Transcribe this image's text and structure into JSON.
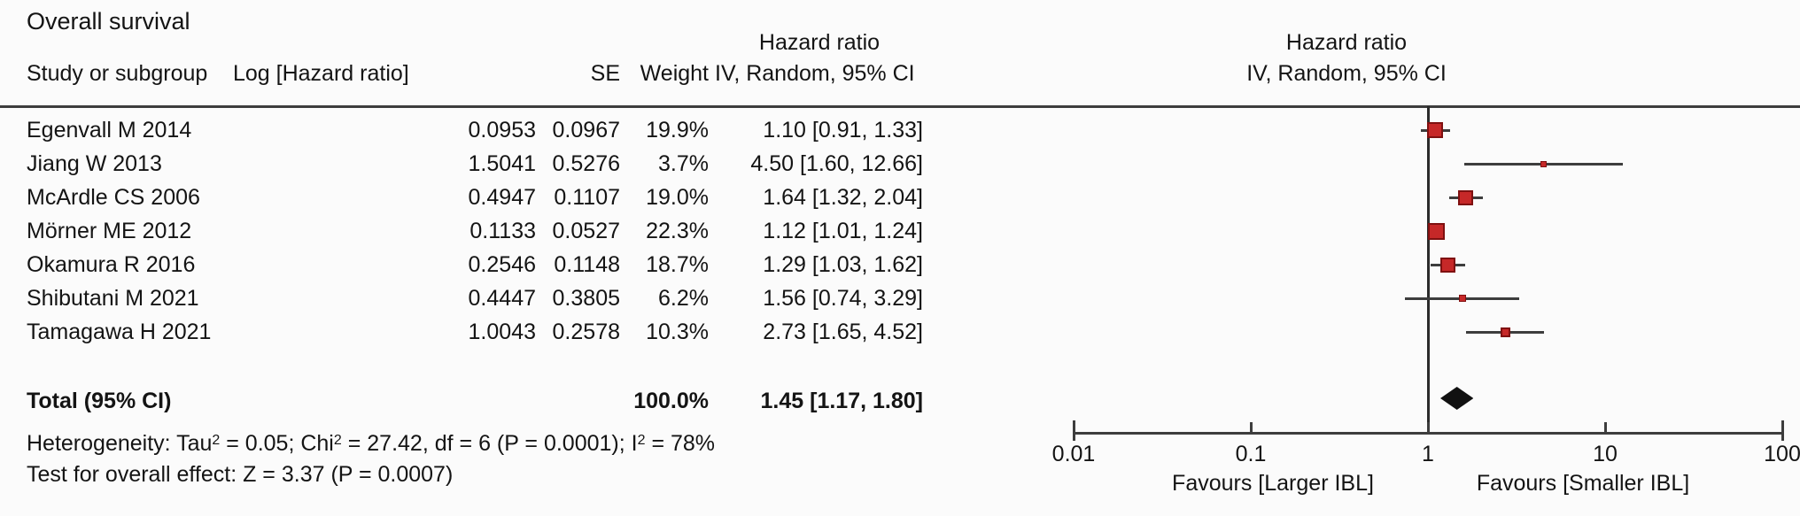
{
  "figure": {
    "title": "Overall survival",
    "table_header": {
      "study": "Study or subgroup",
      "log_hr": "Log [Hazard ratio]",
      "se": "SE",
      "weight": "Weight",
      "hr_line1": "Hazard ratio",
      "hr_line2": "IV, Random, 95% CI",
      "plot_line1": "Hazard ratio",
      "plot_line2": "IV, Random, 95% CI"
    },
    "rows": [
      {
        "study": "Egenvall M 2014",
        "log_hr": "0.0953",
        "se": "0.0967",
        "weight": "19.9%",
        "hr_ci": "1.10 [0.91, 1.33]"
      },
      {
        "study": "Jiang W 2013",
        "log_hr": "1.5041",
        "se": "0.5276",
        "weight": "3.7%",
        "hr_ci": "4.50 [1.60, 12.66]"
      },
      {
        "study": "McArdle CS 2006",
        "log_hr": "0.4947",
        "se": "0.1107",
        "weight": "19.0%",
        "hr_ci": "1.64 [1.32, 2.04]"
      },
      {
        "study": "Mörner ME 2012",
        "log_hr": "0.1133",
        "se": "0.0527",
        "weight": "22.3%",
        "hr_ci": "1.12 [1.01, 1.24]"
      },
      {
        "study": "Okamura R 2016",
        "log_hr": "0.2546",
        "se": "0.1148",
        "weight": "18.7%",
        "hr_ci": "1.29 [1.03, 1.62]"
      },
      {
        "study": "Shibutani M 2021",
        "log_hr": "0.4447",
        "se": "0.3805",
        "weight": "6.2%",
        "hr_ci": "1.56 [0.74, 3.29]"
      },
      {
        "study": "Tamagawa H 2021",
        "log_hr": "1.0043",
        "se": "0.2578",
        "weight": "10.3%",
        "hr_ci": "2.73 [1.65, 4.52]"
      }
    ],
    "total": {
      "label": "Total (95% CI)",
      "weight": "100.0%",
      "hr_ci": "1.45 [1.17, 1.80]"
    },
    "heterogeneity": {
      "p1": "Heterogeneity: Tau",
      "s1": "2",
      "p2": " = 0.05; Chi",
      "s2": "2",
      "p3": " = 27.42, df = 6 (P = 0.0001); I",
      "s3": "2",
      "p4": " = 78%"
    },
    "overall_effect": "Test for overall effect: Z = 3.37 (P = 0.0007)"
  },
  "chart_data": {
    "type": "forest",
    "x_scale": "log10",
    "x_range": [
      0.01,
      100
    ],
    "x_ticks": [
      0.01,
      0.1,
      1,
      10,
      100
    ],
    "x_tick_labels": [
      "0.01",
      "0.1",
      "1",
      "10",
      "100"
    ],
    "null_line_value": 1,
    "studies": [
      {
        "name": "Egenvall M 2014",
        "hr": 1.1,
        "lo": 0.91,
        "hi": 1.33,
        "weight_pct": 19.9
      },
      {
        "name": "Jiang W 2013",
        "hr": 4.5,
        "lo": 1.6,
        "hi": 12.66,
        "weight_pct": 3.7
      },
      {
        "name": "McArdle CS 2006",
        "hr": 1.64,
        "lo": 1.32,
        "hi": 2.04,
        "weight_pct": 19.0
      },
      {
        "name": "Mörner ME 2012",
        "hr": 1.12,
        "lo": 1.01,
        "hi": 1.24,
        "weight_pct": 22.3
      },
      {
        "name": "Okamura R 2016",
        "hr": 1.29,
        "lo": 1.03,
        "hi": 1.62,
        "weight_pct": 18.7
      },
      {
        "name": "Shibutani M 2021",
        "hr": 1.56,
        "lo": 0.74,
        "hi": 3.29,
        "weight_pct": 6.2
      },
      {
        "name": "Tamagawa H 2021",
        "hr": 2.73,
        "lo": 1.65,
        "hi": 4.52,
        "weight_pct": 10.3
      }
    ],
    "total": {
      "hr": 1.45,
      "lo": 1.17,
      "hi": 1.8
    },
    "favours_left": "Favours [Larger IBL]",
    "favours_right": "Favours [Smaller IBL]",
    "marker_color": "#c62828",
    "marker_border_color": "#7f1010",
    "line_color": "#3d3d3d",
    "diamond_color": "#111111"
  }
}
